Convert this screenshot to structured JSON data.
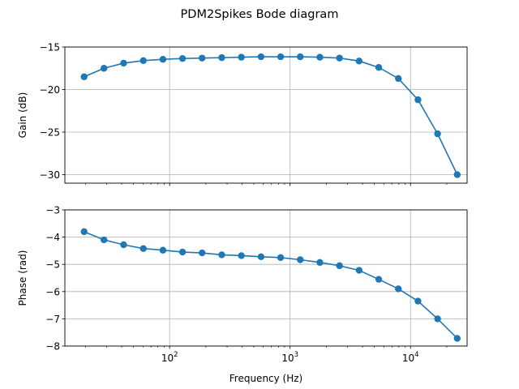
{
  "chart_data": [
    {
      "type": "line",
      "title": "PDM2Spikes Bode diagram",
      "xlabel": "",
      "ylabel": "Gain (dB)",
      "xscale": "log",
      "xlim": [
        13.5,
        29500
      ],
      "ylim": [
        -31,
        -15
      ],
      "yticks": [
        -15,
        -20,
        -25,
        -30
      ],
      "ytick_labels": [
        "−15",
        "−20",
        "−25",
        "−30"
      ],
      "grid": true,
      "marker": "circle",
      "color": "#1f77b4",
      "x": [
        19.5,
        28.5,
        41.5,
        60.5,
        88,
        128,
        186,
        271,
        394,
        574,
        835,
        1215,
        1768,
        2573,
        3744,
        5448,
        7927,
        11534,
        16783,
        24420
      ],
      "y": [
        -18.5,
        -17.5,
        -16.9,
        -16.6,
        -16.45,
        -16.35,
        -16.3,
        -16.25,
        -16.2,
        -16.15,
        -16.15,
        -16.15,
        -16.2,
        -16.3,
        -16.65,
        -17.4,
        -18.7,
        -21.2,
        -25.2,
        -30.0
      ]
    },
    {
      "type": "line",
      "title": "",
      "xlabel": "Frequency (Hz)",
      "ylabel": "Phase (rad)",
      "xscale": "log",
      "xlim": [
        13.5,
        29500
      ],
      "ylim": [
        -8,
        -3
      ],
      "yticks": [
        -3,
        -4,
        -5,
        -6,
        -7,
        -8
      ],
      "ytick_labels": [
        "−3",
        "−4",
        "−5",
        "−6",
        "−7",
        "−8"
      ],
      "xticks": [
        100,
        1000,
        10000
      ],
      "xtick_base": "10",
      "xtick_exponents": [
        "2",
        "3",
        "4"
      ],
      "grid": true,
      "marker": "circle",
      "color": "#1f77b4",
      "x": [
        19.5,
        28.5,
        41.5,
        60.5,
        88,
        128,
        186,
        271,
        394,
        574,
        835,
        1215,
        1768,
        2573,
        3744,
        5448,
        7927,
        11534,
        16783,
        24420
      ],
      "y": [
        -3.8,
        -4.1,
        -4.28,
        -4.42,
        -4.48,
        -4.55,
        -4.58,
        -4.65,
        -4.68,
        -4.72,
        -4.75,
        -4.83,
        -4.93,
        -5.05,
        -5.22,
        -5.55,
        -5.9,
        -6.35,
        -7.0,
        -7.72
      ]
    }
  ]
}
